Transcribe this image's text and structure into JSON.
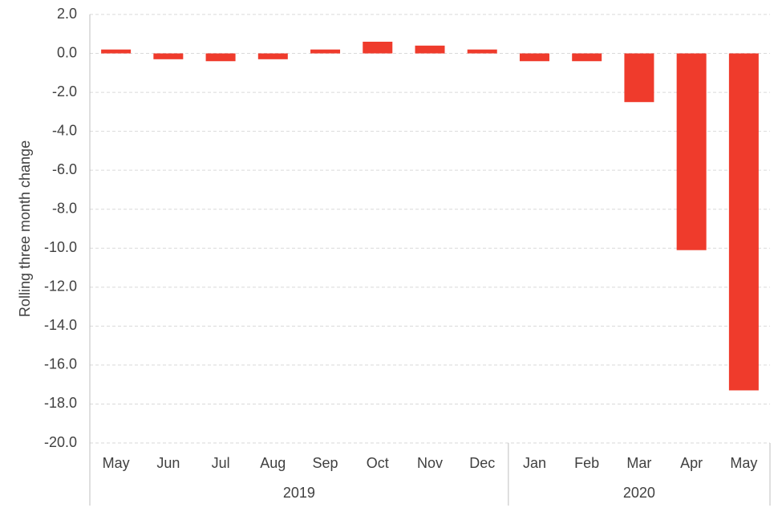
{
  "chart_data": {
    "type": "bar",
    "y_axis_label": "Rolling three month change",
    "groups": [
      {
        "label": "2019",
        "categories": [
          "May",
          "Jun",
          "Jul",
          "Aug",
          "Sep",
          "Oct",
          "Nov",
          "Dec"
        ]
      },
      {
        "label": "2020",
        "categories": [
          "Jan",
          "Feb",
          "Mar",
          "Apr",
          "May"
        ]
      }
    ],
    "values": [
      0.2,
      -0.3,
      -0.4,
      -0.3,
      0.2,
      0.6,
      0.4,
      0.2,
      -0.4,
      -0.4,
      -2.5,
      -10.1,
      -17.3
    ],
    "color": "#ef3b2c",
    "ylim": [
      -20,
      2
    ],
    "yticks": [
      {
        "value": 2,
        "label": "2.0"
      },
      {
        "value": 0,
        "label": "0.0"
      },
      {
        "value": -2,
        "label": "-2.0"
      },
      {
        "value": -4,
        "label": "-4.0"
      },
      {
        "value": -6,
        "label": "-6.0"
      },
      {
        "value": -8,
        "label": "-8.0"
      },
      {
        "value": -10,
        "label": "-10.0"
      },
      {
        "value": -12,
        "label": "-12.0"
      },
      {
        "value": -14,
        "label": "-14.0"
      },
      {
        "value": -16,
        "label": "-16.0"
      },
      {
        "value": -18,
        "label": "-18.0"
      },
      {
        "value": -20,
        "label": "-20.0"
      }
    ],
    "grid": true
  }
}
